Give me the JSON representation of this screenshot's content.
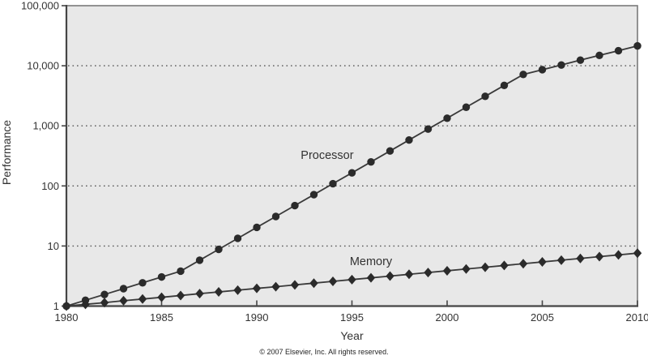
{
  "figure": {
    "copyright": "© 2007 Elsevier, Inc. All rights reserved."
  },
  "colors": {
    "plot_background": "#e8e8e8",
    "plot_border": "#7a7a7a",
    "axis_line": "#454545",
    "gridline": "#565656",
    "series_line": "#3a3a3a",
    "marker_fill": "#2b2b2b",
    "text": "#333333"
  },
  "chart_data": {
    "type": "line",
    "title": "",
    "xlabel": "Year",
    "ylabel": "Performance",
    "x_axis": {
      "min": 1980,
      "max": 2010,
      "tick_values": [
        1980,
        1985,
        1990,
        1995,
        2000,
        2005,
        2010
      ],
      "tick_labels": [
        "1980",
        "1985",
        "1990",
        "1995",
        "2000",
        "2005",
        "2010"
      ]
    },
    "y_axis": {
      "scale": "log",
      "min": 1,
      "max": 100000,
      "tick_values": [
        1,
        10,
        100,
        1000,
        10000,
        100000
      ],
      "tick_labels": [
        "1",
        "10",
        "100",
        "1,000",
        "10,000",
        "100,000"
      ]
    },
    "grid": {
      "horizontal_dotted": true,
      "vertical": false
    },
    "legend": "inline-labels",
    "x": [
      1980,
      1981,
      1982,
      1983,
      1984,
      1985,
      1986,
      1987,
      1988,
      1989,
      1990,
      1991,
      1992,
      1993,
      1994,
      1995,
      1996,
      1997,
      1998,
      1999,
      2000,
      2001,
      2002,
      2003,
      2004,
      2005,
      2006,
      2007,
      2008,
      2009,
      2010
    ],
    "series": [
      {
        "name": "Processor",
        "marker": "circle",
        "values": [
          1,
          1.25,
          1.56,
          1.95,
          2.44,
          3.05,
          3.81,
          5.8,
          8.8,
          13.4,
          20.4,
          31.0,
          47.1,
          71.6,
          109,
          165,
          251,
          382,
          581,
          883,
          1340,
          2040,
          3100,
          4710,
          7160,
          8600,
          10300,
          12400,
          14900,
          17800,
          21400
        ]
      },
      {
        "name": "Memory",
        "marker": "diamond",
        "values": [
          1,
          1.07,
          1.14,
          1.23,
          1.31,
          1.4,
          1.5,
          1.61,
          1.72,
          1.84,
          1.97,
          2.1,
          2.25,
          2.41,
          2.58,
          2.76,
          2.95,
          3.16,
          3.38,
          3.62,
          3.87,
          4.14,
          4.43,
          4.74,
          5.07,
          5.43,
          5.81,
          6.21,
          6.65,
          7.11,
          7.61
        ]
      }
    ],
    "annotations": [
      {
        "text": "Processor",
        "x": 1993.7,
        "y": 330
      },
      {
        "text": "Memory",
        "x": 1996.0,
        "y": 5.6
      }
    ]
  }
}
